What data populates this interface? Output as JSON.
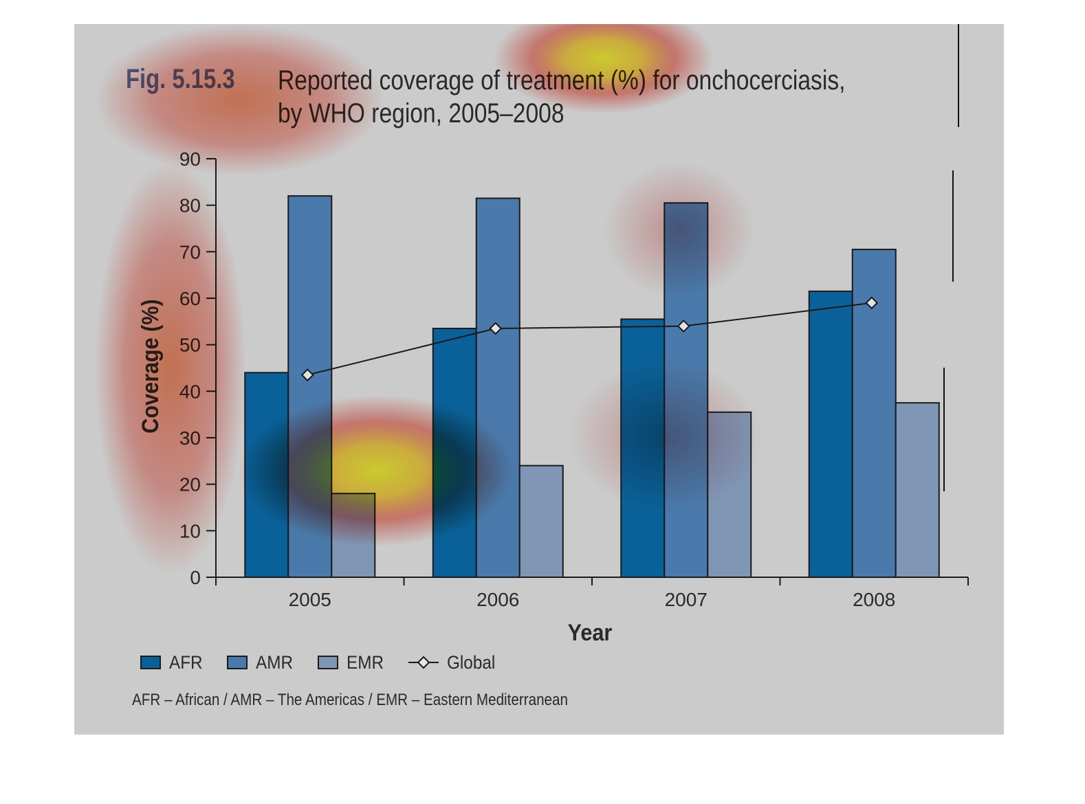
{
  "figure": {
    "label": "Fig. 5.15.3",
    "title_line1": "Reported coverage of treatment (%) for onchocerciasis,",
    "title_line2": "by WHO region, 2005–2008",
    "footnote": "AFR – African / AMR – The Americas / EMR – Eastern Mediterranean",
    "background": "#cbcbcb"
  },
  "chart_data": {
    "type": "bar",
    "categories": [
      "2005",
      "2006",
      "2007",
      "2008"
    ],
    "series": [
      {
        "name": "AFR",
        "kind": "bar",
        "color": "#0a6199",
        "values": [
          44,
          53.5,
          55.5,
          61.5
        ]
      },
      {
        "name": "AMR",
        "kind": "bar",
        "color": "#4a7aab",
        "values": [
          82,
          81.5,
          80.5,
          70.5
        ]
      },
      {
        "name": "EMR",
        "kind": "bar",
        "color": "#8096b5",
        "values": [
          18,
          24,
          35.5,
          37.5
        ]
      },
      {
        "name": "Global",
        "kind": "line",
        "marker": "diamond",
        "color": "#1a1a1a",
        "values": [
          43.5,
          53.5,
          54,
          59
        ]
      }
    ],
    "xlabel": "Year",
    "ylabel": "Coverage (%)",
    "ylim": [
      0,
      90
    ],
    "yticks": [
      "0",
      "10",
      "20",
      "30",
      "40",
      "50",
      "60",
      "70",
      "80",
      "90"
    ],
    "grid": false,
    "legend_position": "bottom-left",
    "overlay": "attention heatmap"
  }
}
